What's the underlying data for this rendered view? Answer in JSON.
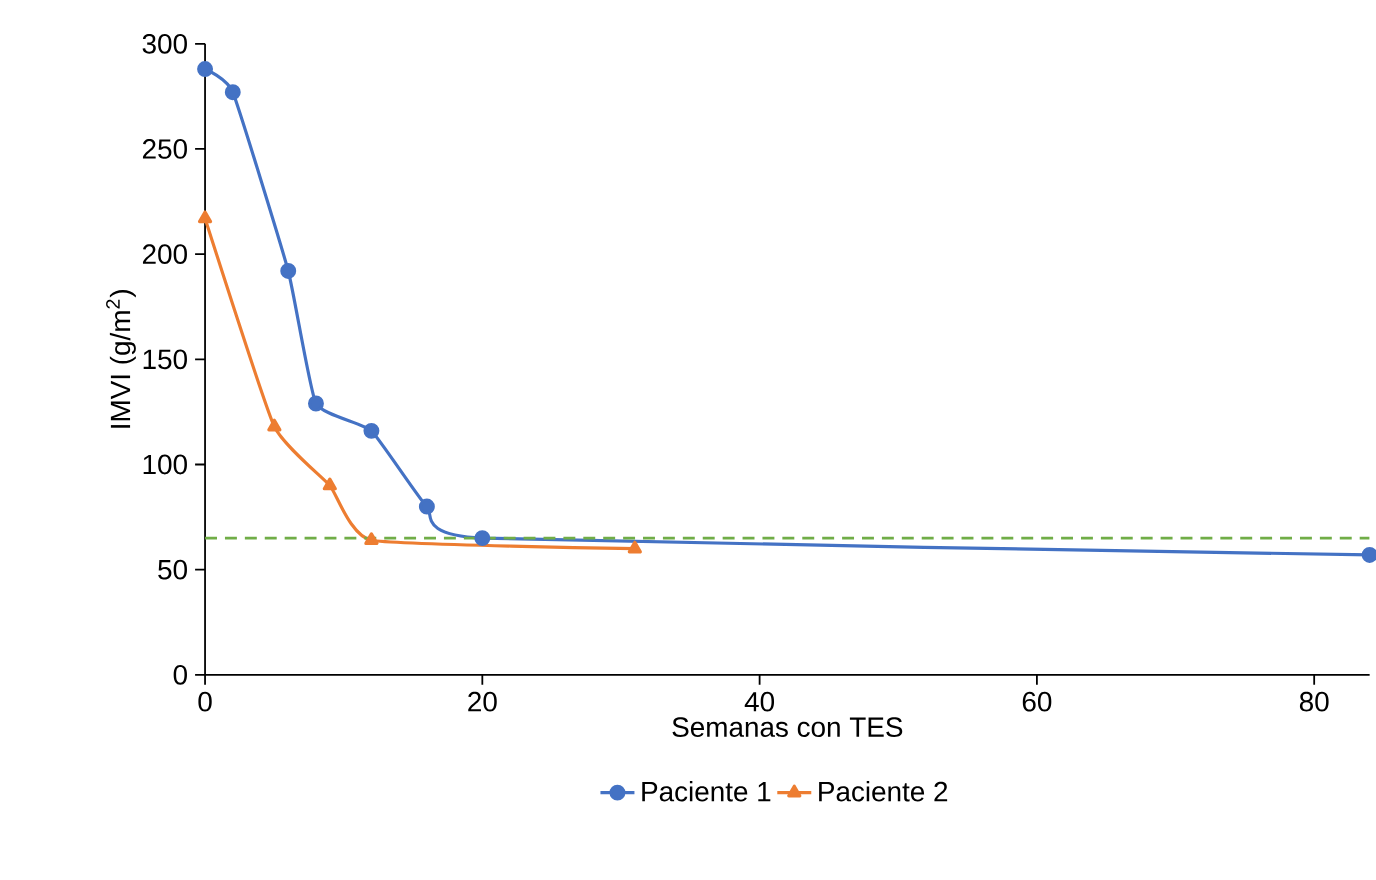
{
  "chart_data": {
    "type": "line",
    "xlabel": "Semanas con TES",
    "ylabel": "IMVI (g/m$^{2}$)",
    "xlim": [
      0,
      84
    ],
    "ylim": [
      0,
      300
    ],
    "xticks": [
      0,
      20,
      40,
      60,
      80
    ],
    "yticks": [
      0,
      50,
      100,
      150,
      200,
      250,
      300
    ],
    "grid": false,
    "legend": "bottom",
    "series": [
      {
        "name": "Paciente 1",
        "color": "#4472c4",
        "marker": "circle",
        "x": [
          0,
          2,
          6,
          8,
          12,
          16,
          20,
          84
        ],
        "values": [
          288,
          277,
          192,
          129,
          116,
          80,
          65,
          57
        ]
      },
      {
        "name": "Paciente 2",
        "color": "#ed7d31",
        "marker": "triangle",
        "x": [
          0,
          5,
          9,
          12,
          31
        ],
        "values": [
          217,
          118,
          90,
          64,
          60
        ]
      }
    ],
    "ref_lines": [
      {
        "axis": "y",
        "value": 65,
        "color": "#70ad47",
        "line_style": "dashed"
      }
    ]
  }
}
